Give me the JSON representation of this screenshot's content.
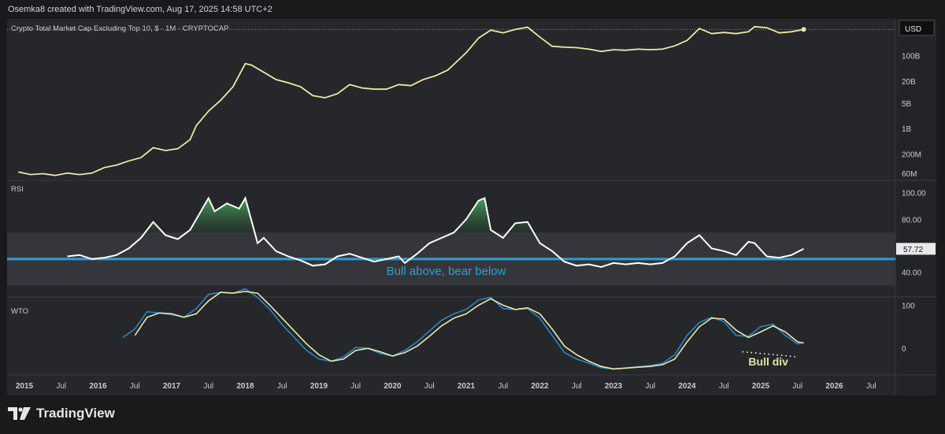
{
  "header": {
    "attribution": "Osemka8 created with TradingView.com, Aug 17, 2025 14:58 UTC+2"
  },
  "brand": {
    "logo_text": "TradingView"
  },
  "colors": {
    "price_line": "#ece8a5",
    "rsi_line": "#ffffff",
    "rsi_midline": "#2a9fd8",
    "rsi_fill": "#3c8f4f",
    "wto_blue": "#2a86c9",
    "wto_yellow": "#ece8a5",
    "panel_bg": "#26272b",
    "band_bg": "#35363b"
  },
  "chart_data": [
    {
      "type": "line",
      "title": "Crypto Total Market Cap Excluding Top 10, $ · 1M · CRYPTOCAP",
      "currency_badge": "USD",
      "y_scale": "log",
      "y_ticks": [
        "100B",
        "20B",
        "5B",
        "1B",
        "200M",
        "60M"
      ],
      "y_tick_values": [
        100000000000,
        20000000000,
        5000000000,
        1000000000,
        200000000,
        60000000
      ],
      "x_ticks": [
        "2015",
        "Jul",
        "2016",
        "Jul",
        "2017",
        "Jul",
        "2018",
        "Jul",
        "2019",
        "Jul",
        "2020",
        "Jul",
        "2021",
        "Jul",
        "2022",
        "Jul",
        "2023",
        "Jul",
        "2024",
        "Jul",
        "2025",
        "Jul",
        "2026",
        "Jul"
      ],
      "x_start": "2015-01",
      "x_end": "2026-12",
      "series": [
        {
          "points": [
            [
              "2014-12",
              0.065
            ],
            [
              "2015-02",
              0.055
            ],
            [
              "2015-04",
              0.058
            ],
            [
              "2015-06",
              0.052
            ],
            [
              "2015-08",
              0.06
            ],
            [
              "2015-10",
              0.055
            ],
            [
              "2015-12",
              0.06
            ],
            [
              "2016-02",
              0.085
            ],
            [
              "2016-04",
              0.1
            ],
            [
              "2016-06",
              0.13
            ],
            [
              "2016-08",
              0.16
            ],
            [
              "2016-10",
              0.3
            ],
            [
              "2016-12",
              0.25
            ],
            [
              "2017-02",
              0.28
            ],
            [
              "2017-04",
              0.5
            ],
            [
              "2017-05",
              1.2
            ],
            [
              "2017-07",
              3
            ],
            [
              "2017-09",
              6
            ],
            [
              "2017-11",
              14
            ],
            [
              "2018-01",
              60
            ],
            [
              "2018-02",
              55
            ],
            [
              "2018-04",
              35
            ],
            [
              "2018-06",
              22
            ],
            [
              "2018-08",
              18
            ],
            [
              "2018-10",
              14
            ],
            [
              "2018-12",
              8
            ],
            [
              "2019-02",
              7
            ],
            [
              "2019-04",
              9
            ],
            [
              "2019-06",
              16
            ],
            [
              "2019-08",
              13
            ],
            [
              "2019-10",
              12
            ],
            [
              "2019-12",
              12
            ],
            [
              "2020-02",
              16
            ],
            [
              "2020-04",
              15
            ],
            [
              "2020-06",
              22
            ],
            [
              "2020-08",
              28
            ],
            [
              "2020-10",
              40
            ],
            [
              "2021-01",
              120
            ],
            [
              "2021-03",
              300
            ],
            [
              "2021-05",
              500
            ],
            [
              "2021-07",
              420
            ],
            [
              "2021-09",
              520
            ],
            [
              "2021-11",
              600
            ],
            [
              "2022-01",
              320
            ],
            [
              "2022-03",
              180
            ],
            [
              "2022-05",
              170
            ],
            [
              "2022-07",
              165
            ],
            [
              "2022-09",
              150
            ],
            [
              "2022-11",
              130
            ],
            [
              "2023-01",
              145
            ],
            [
              "2023-03",
              140
            ],
            [
              "2023-05",
              150
            ],
            [
              "2023-07",
              145
            ],
            [
              "2023-09",
              150
            ],
            [
              "2023-11",
              185
            ],
            [
              "2024-01",
              260
            ],
            [
              "2024-03",
              550
            ],
            [
              "2024-05",
              400
            ],
            [
              "2024-07",
              430
            ],
            [
              "2024-09",
              400
            ],
            [
              "2024-11",
              450
            ],
            [
              "2024-12",
              620
            ],
            [
              "2025-02",
              580
            ],
            [
              "2025-04",
              420
            ],
            [
              "2025-06",
              450
            ],
            [
              "2025-08",
              520
            ]
          ]
        }
      ]
    },
    {
      "type": "line",
      "title": "RSI",
      "y_ticks": [
        "100.00",
        "80.00",
        "40.00"
      ],
      "y_tick_values": [
        100,
        80,
        40
      ],
      "last_value_label": "57.72",
      "midline": 50,
      "band": [
        30,
        70
      ],
      "annotation": "Bull above, bear below",
      "series": [
        {
          "points": [
            [
              "2015-08",
              52
            ],
            [
              "2015-10",
              53
            ],
            [
              "2015-12",
              50
            ],
            [
              "2016-02",
              51
            ],
            [
              "2016-04",
              53
            ],
            [
              "2016-06",
              58
            ],
            [
              "2016-08",
              66
            ],
            [
              "2016-10",
              78
            ],
            [
              "2016-12",
              68
            ],
            [
              "2017-02",
              65
            ],
            [
              "2017-04",
              72
            ],
            [
              "2017-06",
              88
            ],
            [
              "2017-07",
              96
            ],
            [
              "2017-08",
              86
            ],
            [
              "2017-10",
              92
            ],
            [
              "2017-12",
              88
            ],
            [
              "2018-01",
              96
            ],
            [
              "2018-03",
              62
            ],
            [
              "2018-04",
              66
            ],
            [
              "2018-06",
              56
            ],
            [
              "2018-08",
              52
            ],
            [
              "2018-10",
              49
            ],
            [
              "2018-12",
              45
            ],
            [
              "2019-02",
              46
            ],
            [
              "2019-04",
              52
            ],
            [
              "2019-06",
              54
            ],
            [
              "2019-08",
              51
            ],
            [
              "2019-10",
              48
            ],
            [
              "2019-12",
              50
            ],
            [
              "2020-02",
              52
            ],
            [
              "2020-03",
              47
            ],
            [
              "2020-05",
              54
            ],
            [
              "2020-07",
              62
            ],
            [
              "2020-09",
              66
            ],
            [
              "2020-11",
              70
            ],
            [
              "2021-01",
              80
            ],
            [
              "2021-03",
              94
            ],
            [
              "2021-04",
              96
            ],
            [
              "2021-05",
              72
            ],
            [
              "2021-07",
              66
            ],
            [
              "2021-09",
              77
            ],
            [
              "2021-11",
              78
            ],
            [
              "2022-01",
              62
            ],
            [
              "2022-03",
              56
            ],
            [
              "2022-05",
              48
            ],
            [
              "2022-07",
              45
            ],
            [
              "2022-09",
              46
            ],
            [
              "2022-11",
              44
            ],
            [
              "2023-01",
              47
            ],
            [
              "2023-03",
              46
            ],
            [
              "2023-05",
              47
            ],
            [
              "2023-07",
              46
            ],
            [
              "2023-09",
              47
            ],
            [
              "2023-11",
              52
            ],
            [
              "2024-01",
              62
            ],
            [
              "2024-03",
              68
            ],
            [
              "2024-05",
              58
            ],
            [
              "2024-07",
              56
            ],
            [
              "2024-09",
              53
            ],
            [
              "2024-11",
              63
            ],
            [
              "2024-12",
              62
            ],
            [
              "2025-02",
              52
            ],
            [
              "2025-04",
              51
            ],
            [
              "2025-06",
              53
            ],
            [
              "2025-08",
              57.72
            ]
          ]
        }
      ]
    },
    {
      "type": "line",
      "title": "WTO",
      "y_ticks": [
        "100",
        "0"
      ],
      "y_tick_values": [
        100,
        0
      ],
      "annotation": "Bull div",
      "series": [
        {
          "color": "#2a86c9",
          "points": [
            [
              "2016-05",
              25
            ],
            [
              "2016-07",
              45
            ],
            [
              "2016-09",
              85
            ],
            [
              "2016-11",
              82
            ],
            [
              "2017-01",
              78
            ],
            [
              "2017-03",
              72
            ],
            [
              "2017-05",
              92
            ],
            [
              "2017-07",
              125
            ],
            [
              "2017-09",
              130
            ],
            [
              "2017-11",
              128
            ],
            [
              "2018-01",
              138
            ],
            [
              "2018-03",
              118
            ],
            [
              "2018-05",
              90
            ],
            [
              "2018-07",
              55
            ],
            [
              "2018-09",
              25
            ],
            [
              "2018-11",
              -5
            ],
            [
              "2019-01",
              -25
            ],
            [
              "2019-03",
              -30
            ],
            [
              "2019-05",
              -20
            ],
            [
              "2019-07",
              2
            ],
            [
              "2019-09",
              0
            ],
            [
              "2019-11",
              -12
            ],
            [
              "2020-01",
              -18
            ],
            [
              "2020-03",
              -5
            ],
            [
              "2020-05",
              15
            ],
            [
              "2020-07",
              40
            ],
            [
              "2020-09",
              65
            ],
            [
              "2020-11",
              80
            ],
            [
              "2021-01",
              90
            ],
            [
              "2021-03",
              112
            ],
            [
              "2021-05",
              118
            ],
            [
              "2021-07",
              92
            ],
            [
              "2021-09",
              90
            ],
            [
              "2021-11",
              92
            ],
            [
              "2022-01",
              70
            ],
            [
              "2022-03",
              30
            ],
            [
              "2022-05",
              -10
            ],
            [
              "2022-07",
              -25
            ],
            [
              "2022-09",
              -35
            ],
            [
              "2022-11",
              -45
            ],
            [
              "2023-01",
              -48
            ],
            [
              "2023-03",
              -46
            ],
            [
              "2023-05",
              -43
            ],
            [
              "2023-07",
              -40
            ],
            [
              "2023-09",
              -35
            ],
            [
              "2023-11",
              -15
            ],
            [
              "2024-01",
              30
            ],
            [
              "2024-03",
              60
            ],
            [
              "2024-05",
              72
            ],
            [
              "2024-07",
              62
            ],
            [
              "2024-09",
              30
            ],
            [
              "2024-11",
              28
            ],
            [
              "2025-01",
              50
            ],
            [
              "2025-03",
              56
            ],
            [
              "2025-05",
              30
            ],
            [
              "2025-07",
              10
            ],
            [
              "2025-08",
              14
            ]
          ]
        },
        {
          "color": "#ece8a5",
          "points": [
            [
              "2016-07",
              30
            ],
            [
              "2016-09",
              72
            ],
            [
              "2016-11",
              82
            ],
            [
              "2017-01",
              80
            ],
            [
              "2017-03",
              72
            ],
            [
              "2017-05",
              80
            ],
            [
              "2017-07",
              110
            ],
            [
              "2017-09",
              130
            ],
            [
              "2017-11",
              128
            ],
            [
              "2018-01",
              132
            ],
            [
              "2018-03",
              128
            ],
            [
              "2018-05",
              100
            ],
            [
              "2018-07",
              70
            ],
            [
              "2018-09",
              40
            ],
            [
              "2018-11",
              10
            ],
            [
              "2019-01",
              -15
            ],
            [
              "2019-03",
              -30
            ],
            [
              "2019-05",
              -25
            ],
            [
              "2019-07",
              -5
            ],
            [
              "2019-09",
              0
            ],
            [
              "2019-11",
              -8
            ],
            [
              "2020-01",
              -18
            ],
            [
              "2020-03",
              -10
            ],
            [
              "2020-05",
              5
            ],
            [
              "2020-07",
              28
            ],
            [
              "2020-09",
              52
            ],
            [
              "2020-11",
              70
            ],
            [
              "2021-01",
              80
            ],
            [
              "2021-03",
              100
            ],
            [
              "2021-05",
              115
            ],
            [
              "2021-07",
              100
            ],
            [
              "2021-09",
              90
            ],
            [
              "2021-11",
              94
            ],
            [
              "2022-01",
              80
            ],
            [
              "2022-03",
              45
            ],
            [
              "2022-05",
              5
            ],
            [
              "2022-07",
              -15
            ],
            [
              "2022-09",
              -30
            ],
            [
              "2022-11",
              -42
            ],
            [
              "2023-01",
              -48
            ],
            [
              "2023-03",
              -46
            ],
            [
              "2023-05",
              -44
            ],
            [
              "2023-07",
              -42
            ],
            [
              "2023-09",
              -38
            ],
            [
              "2023-11",
              -25
            ],
            [
              "2024-01",
              15
            ],
            [
              "2024-03",
              50
            ],
            [
              "2024-05",
              70
            ],
            [
              "2024-07",
              68
            ],
            [
              "2024-09",
              42
            ],
            [
              "2024-11",
              25
            ],
            [
              "2025-01",
              38
            ],
            [
              "2025-03",
              52
            ],
            [
              "2025-05",
              38
            ],
            [
              "2025-07",
              15
            ],
            [
              "2025-08",
              12
            ]
          ]
        }
      ]
    }
  ]
}
